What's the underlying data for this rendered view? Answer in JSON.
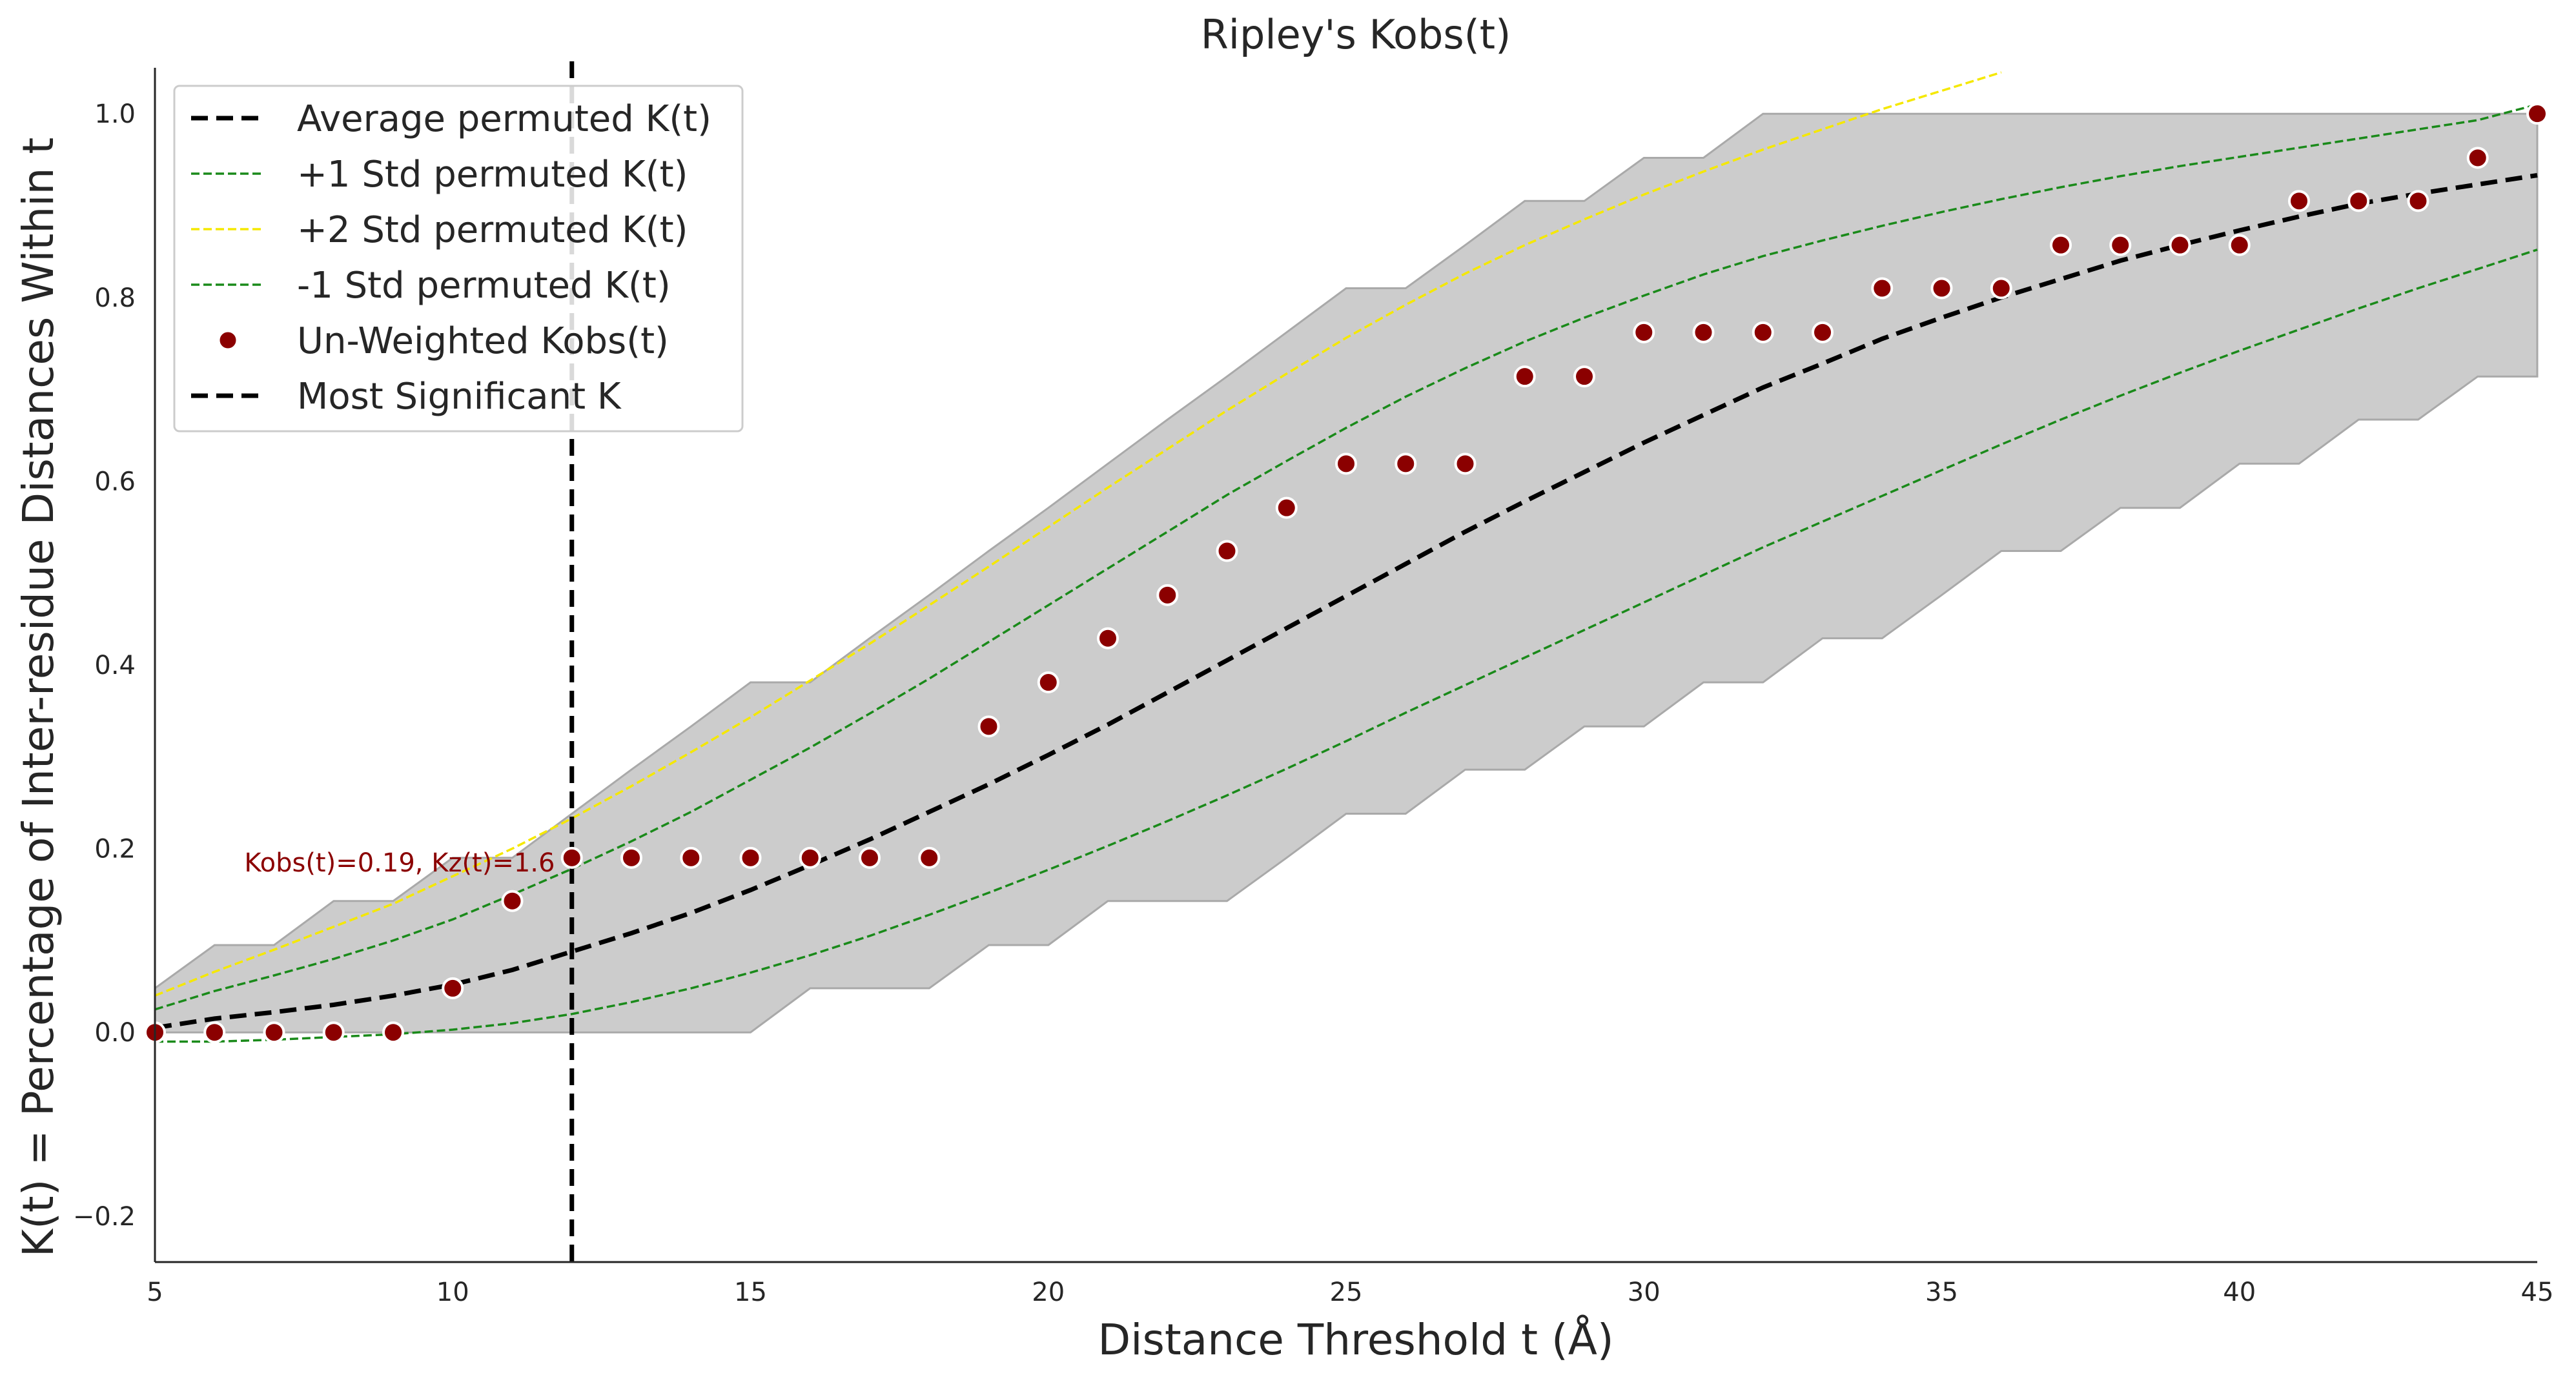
{
  "chart_data": {
    "type": "line",
    "title": "Ripley's Kobs(t)",
    "xlabel": "Distance Threshold t (Å)",
    "ylabel": "K(t) = Percentage of Inter-residue Distances Within t",
    "xlim": [
      5,
      45
    ],
    "ylim": [
      -0.25,
      1.05
    ],
    "xticks": [
      5,
      10,
      15,
      20,
      25,
      30,
      35,
      40,
      45
    ],
    "yticks": [
      -0.2,
      0.0,
      0.2,
      0.4,
      0.6,
      0.8,
      1.0
    ],
    "ytick_labels": [
      "−0.2",
      "0.0",
      "0.2",
      "0.4",
      "0.6",
      "0.8",
      "1.0"
    ],
    "grid": false,
    "legend_position": "top-left",
    "envelope": {
      "x": [
        5,
        6,
        7,
        8,
        9,
        10,
        11,
        12,
        13,
        14,
        15,
        16,
        17,
        18,
        19,
        20,
        21,
        22,
        23,
        24,
        25,
        26,
        27,
        28,
        29,
        30,
        31,
        32,
        33,
        34,
        35,
        36,
        37,
        38,
        39,
        40,
        41,
        42,
        43,
        44,
        45
      ],
      "upper": [
        0.048,
        0.095,
        0.095,
        0.143,
        0.143,
        0.19,
        0.19,
        0.238,
        0.286,
        0.333,
        0.381,
        0.381,
        0.429,
        0.476,
        0.524,
        0.571,
        0.619,
        0.667,
        0.714,
        0.762,
        0.81,
        0.81,
        0.857,
        0.905,
        0.905,
        0.952,
        0.952,
        1.0,
        1.0,
        1.0,
        1.0,
        1.0,
        1.0,
        1.0,
        1.0,
        1.0,
        1.0,
        1.0,
        1.0,
        1.0,
        1.0
      ],
      "lower": [
        0.0,
        0.0,
        0.0,
        0.0,
        0.0,
        0.0,
        0.0,
        0.0,
        0.0,
        0.0,
        0.0,
        0.048,
        0.048,
        0.048,
        0.095,
        0.095,
        0.143,
        0.143,
        0.143,
        0.19,
        0.238,
        0.238,
        0.286,
        0.286,
        0.333,
        0.333,
        0.381,
        0.381,
        0.429,
        0.429,
        0.476,
        0.524,
        0.524,
        0.571,
        0.571,
        0.619,
        0.619,
        0.667,
        0.667,
        0.714,
        0.714
      ]
    },
    "series": [
      {
        "name": "Average permuted K(t)",
        "color": "#000000",
        "style": "dashed-thick",
        "x": [
          5,
          6,
          7,
          8,
          9,
          10,
          11,
          12,
          13,
          14,
          15,
          16,
          17,
          18,
          19,
          20,
          21,
          22,
          23,
          24,
          25,
          26,
          27,
          28,
          29,
          30,
          31,
          32,
          33,
          34,
          35,
          36,
          37,
          38,
          39,
          40,
          41,
          42,
          43,
          44,
          45
        ],
        "values": [
          0.005,
          0.015,
          0.022,
          0.03,
          0.04,
          0.052,
          0.068,
          0.088,
          0.108,
          0.13,
          0.155,
          0.182,
          0.21,
          0.24,
          0.27,
          0.302,
          0.335,
          0.37,
          0.405,
          0.44,
          0.475,
          0.51,
          0.545,
          0.578,
          0.61,
          0.642,
          0.672,
          0.702,
          0.728,
          0.755,
          0.778,
          0.8,
          0.82,
          0.84,
          0.857,
          0.873,
          0.888,
          0.902,
          0.913,
          0.923,
          0.933
        ]
      },
      {
        "name": "+1 Std permuted K(t)",
        "color": "#1a8a1a",
        "style": "dashed-thin",
        "x": [
          5,
          6,
          7,
          8,
          9,
          10,
          11,
          12,
          13,
          14,
          15,
          16,
          17,
          18,
          19,
          20,
          21,
          22,
          23,
          24,
          25,
          26,
          27,
          28,
          29,
          30,
          31,
          32,
          33,
          34,
          35,
          36,
          37,
          38,
          39,
          40,
          41,
          42,
          43,
          44,
          45
        ],
        "values": [
          0.025,
          0.045,
          0.062,
          0.08,
          0.1,
          0.123,
          0.15,
          0.178,
          0.208,
          0.24,
          0.275,
          0.31,
          0.347,
          0.385,
          0.425,
          0.465,
          0.505,
          0.545,
          0.585,
          0.622,
          0.658,
          0.692,
          0.723,
          0.752,
          0.778,
          0.802,
          0.825,
          0.845,
          0.862,
          0.878,
          0.893,
          0.907,
          0.92,
          0.932,
          0.943,
          0.953,
          0.963,
          0.973,
          0.983,
          0.993,
          1.01
        ]
      },
      {
        "name": "+2 Std permuted K(t)",
        "color": "#f5e800",
        "style": "dashed-thin",
        "x": [
          5,
          6,
          7,
          8,
          9,
          10,
          11,
          12,
          13,
          14,
          15,
          16,
          17,
          18,
          19,
          20,
          21,
          22,
          23,
          24,
          25,
          26,
          27,
          28,
          29,
          30,
          31,
          32,
          33,
          34,
          35,
          36
        ],
        "values": [
          0.04,
          0.066,
          0.09,
          0.115,
          0.14,
          0.17,
          0.2,
          0.233,
          0.268,
          0.305,
          0.343,
          0.383,
          0.423,
          0.465,
          0.507,
          0.55,
          0.593,
          0.635,
          0.677,
          0.717,
          0.756,
          0.792,
          0.826,
          0.857,
          0.885,
          0.912,
          0.937,
          0.961,
          0.983,
          1.005,
          1.025,
          1.045
        ]
      },
      {
        "name": "-1 Std permuted K(t)",
        "color": "#1a8a1a",
        "style": "dashed-thin",
        "x": [
          5,
          6,
          7,
          8,
          9,
          10,
          11,
          12,
          13,
          14,
          15,
          16,
          17,
          18,
          19,
          20,
          21,
          22,
          23,
          24,
          25,
          26,
          27,
          28,
          29,
          30,
          31,
          32,
          33,
          34,
          35,
          36,
          37,
          38,
          39,
          40,
          41,
          42,
          43,
          44,
          45
        ],
        "values": [
          -0.01,
          -0.01,
          -0.008,
          -0.005,
          -0.002,
          0.003,
          0.01,
          0.02,
          0.033,
          0.048,
          0.065,
          0.084,
          0.105,
          0.128,
          0.152,
          0.177,
          0.203,
          0.23,
          0.258,
          0.287,
          0.317,
          0.348,
          0.378,
          0.408,
          0.438,
          0.468,
          0.498,
          0.528,
          0.556,
          0.584,
          0.612,
          0.64,
          0.667,
          0.693,
          0.718,
          0.742,
          0.765,
          0.788,
          0.81,
          0.831,
          0.852
        ]
      },
      {
        "name": "Un-Weighted Kobs(t)",
        "color": "#8b0000",
        "style": "points",
        "x": [
          5,
          6,
          7,
          8,
          9,
          10,
          11,
          12,
          13,
          14,
          15,
          16,
          17,
          18,
          19,
          20,
          21,
          22,
          23,
          24,
          25,
          26,
          27,
          28,
          29,
          30,
          31,
          32,
          33,
          34,
          35,
          36,
          37,
          38,
          39,
          40,
          41,
          42,
          43,
          44,
          45
        ],
        "values": [
          0.0,
          0.0,
          0.0,
          0.0,
          0.0,
          0.048,
          0.143,
          0.19,
          0.19,
          0.19,
          0.19,
          0.19,
          0.19,
          0.19,
          0.333,
          0.381,
          0.429,
          0.476,
          0.524,
          0.571,
          0.619,
          0.619,
          0.619,
          0.714,
          0.714,
          0.762,
          0.762,
          0.762,
          0.762,
          0.81,
          0.81,
          0.81,
          0.857,
          0.857,
          0.857,
          0.857,
          0.905,
          0.905,
          0.905,
          0.952,
          1.0
        ]
      },
      {
        "name": "Most Significant K",
        "color": "#000000",
        "style": "vline",
        "x": 12
      }
    ],
    "annotation": {
      "text": "Kobs(t)=0.19, Kz(t)=1.6",
      "x": 6.5,
      "y": 0.175,
      "color": "#8b0000"
    }
  }
}
